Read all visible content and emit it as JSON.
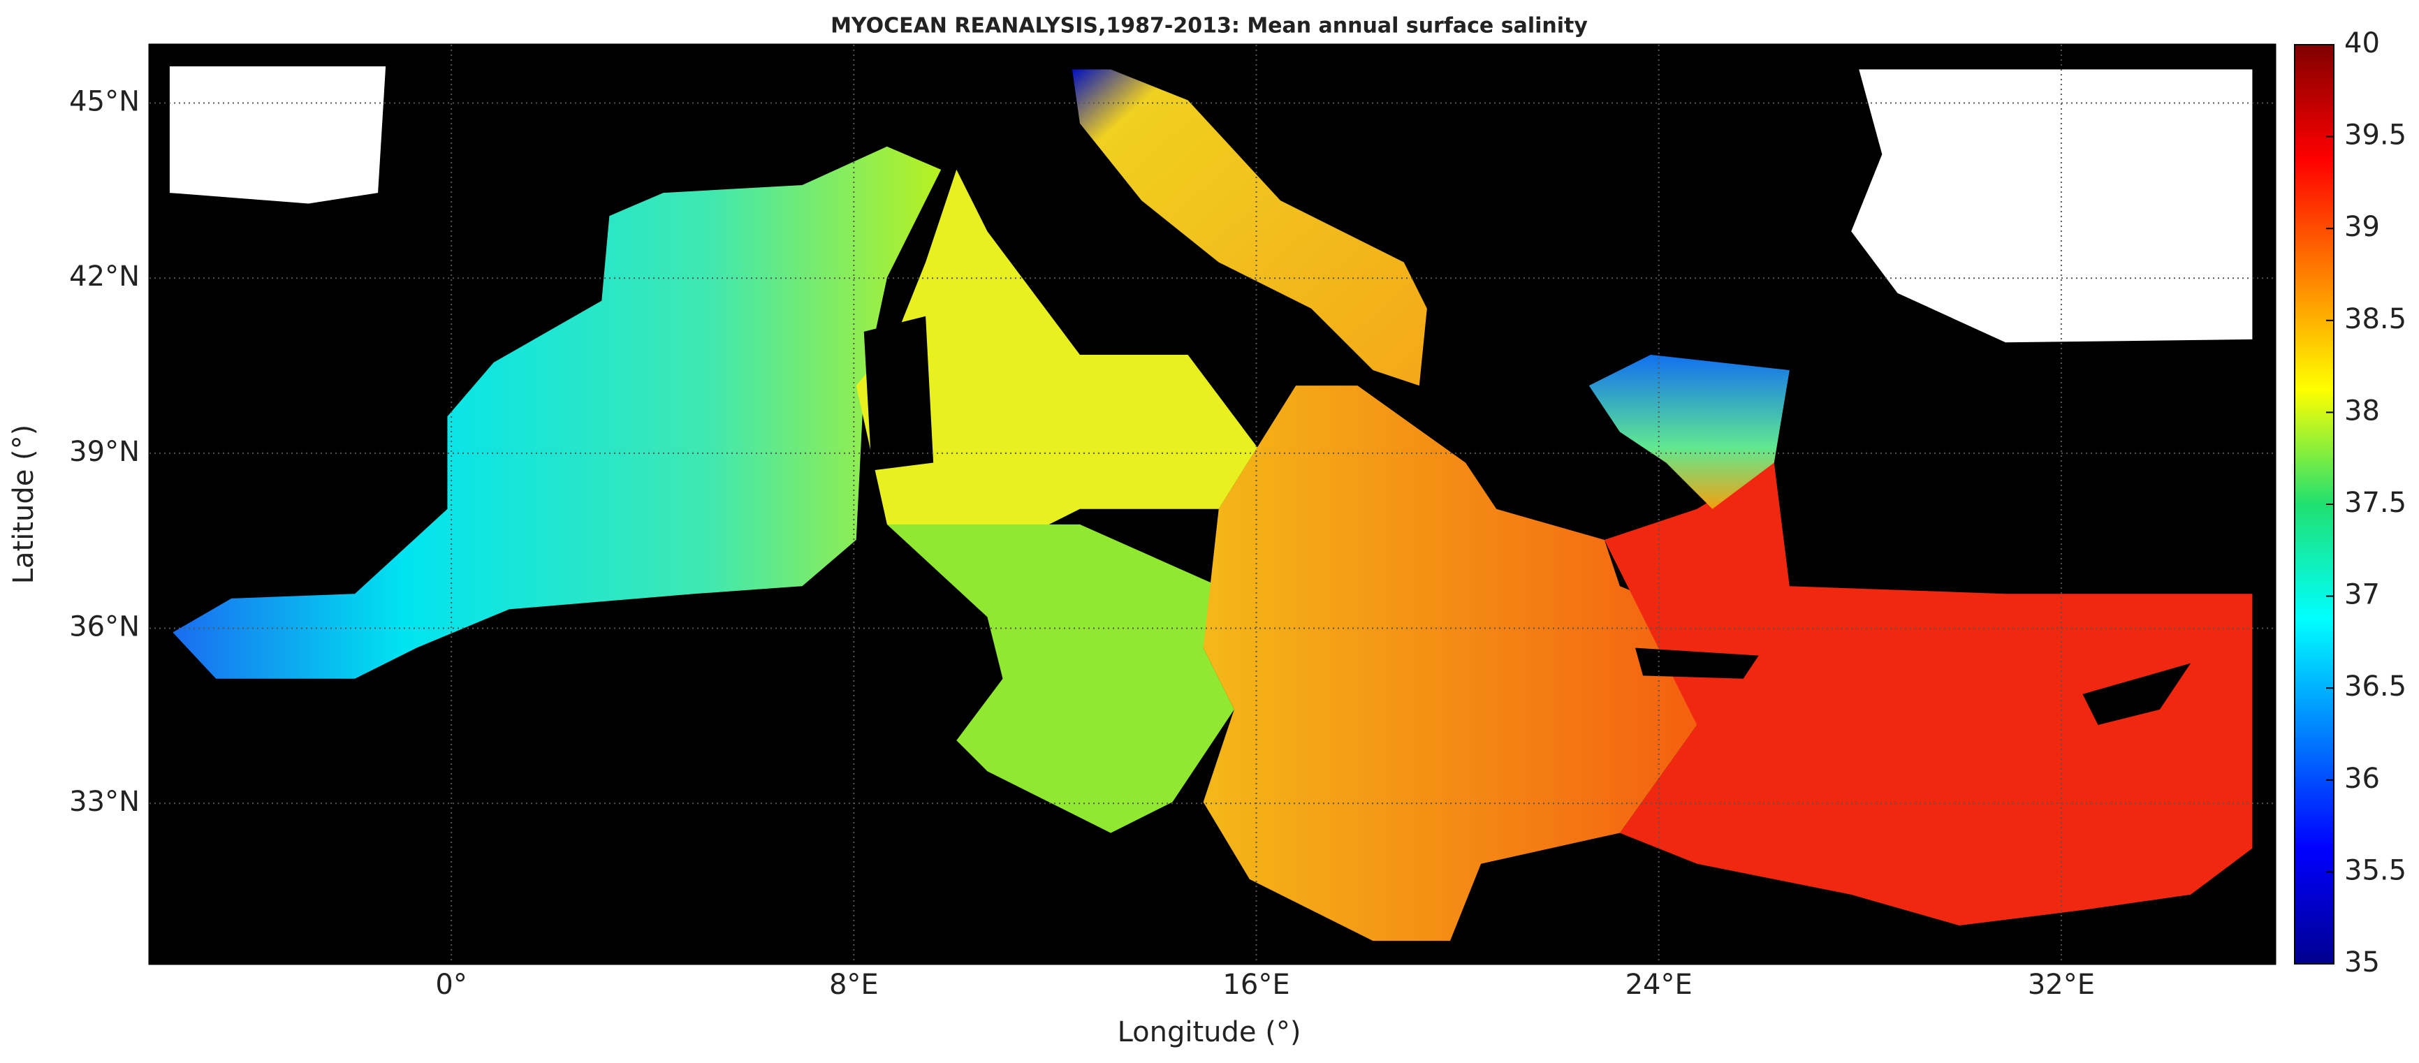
{
  "title": "MYOCEAN REANALYSIS,1987-2013: Mean annual surface salinity",
  "xlabel": "Longitude (°)",
  "ylabel": "Latitude (°)",
  "xlim": [
    -6,
    36.25
  ],
  "ylim": [
    30.25,
    46
  ],
  "xticks": [
    {
      "value": 0,
      "label": "0°"
    },
    {
      "value": 8,
      "label": "8°E"
    },
    {
      "value": 16,
      "label": "16°E"
    },
    {
      "value": 24,
      "label": "24°E"
    },
    {
      "value": 32,
      "label": "32°E"
    }
  ],
  "yticks": [
    {
      "value": 33,
      "label": "33°N"
    },
    {
      "value": 36,
      "label": "36°N"
    },
    {
      "value": 39,
      "label": "39°N"
    },
    {
      "value": 42,
      "label": "42°N"
    },
    {
      "value": 45,
      "label": "45°N"
    }
  ],
  "colorbar": {
    "lim": [
      35,
      40
    ],
    "ticks": [
      35,
      35.5,
      36,
      36.5,
      37,
      37.5,
      38,
      38.5,
      39,
      39.5,
      40
    ]
  }
}
